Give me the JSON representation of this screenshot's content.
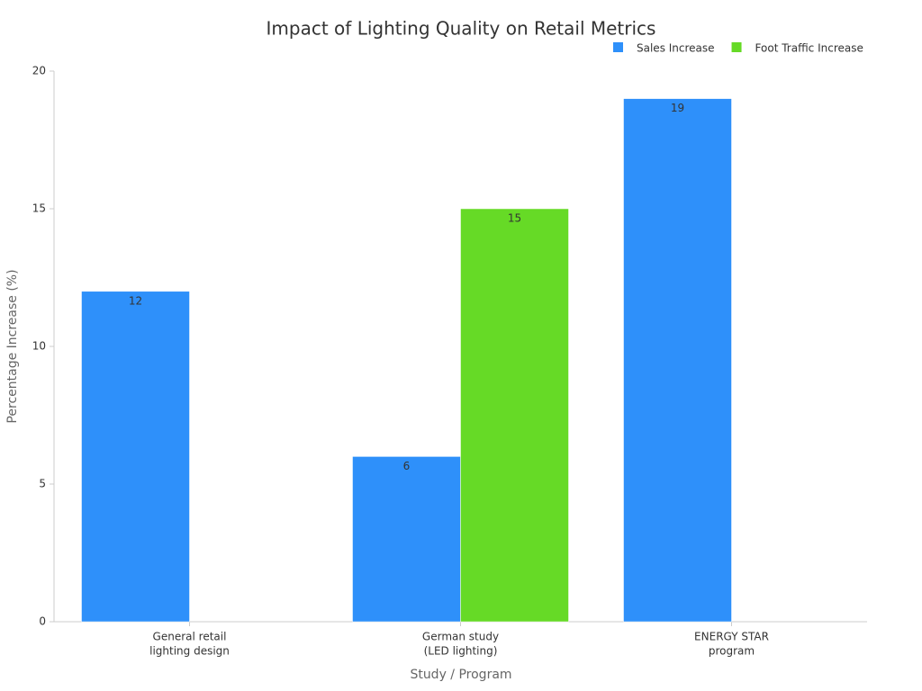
{
  "chart_data": {
    "type": "bar",
    "title": "Impact of Lighting Quality on Retail Metrics",
    "x_label": "Study / Program",
    "y_label": "Percentage Increase (%)",
    "categories": [
      [
        "General retail",
        "lighting design"
      ],
      [
        "German study",
        "(LED lighting)"
      ],
      [
        "ENERGY STAR",
        "program"
      ]
    ],
    "series": [
      {
        "name": "Sales Increase",
        "color": "#2e90fa",
        "values": [
          12,
          6,
          19
        ]
      },
      {
        "name": "Foot Traffic Increase",
        "color": "#66da26",
        "values": [
          null,
          15,
          null
        ]
      }
    ],
    "ylim": [
      0,
      20
    ],
    "yticks": [
      0,
      5,
      10,
      15,
      20
    ],
    "grid": false,
    "legend": "top-right"
  }
}
